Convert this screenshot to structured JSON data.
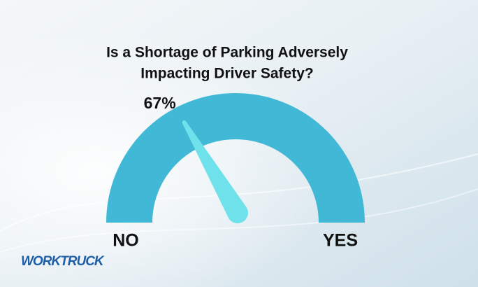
{
  "chart_data": {
    "type": "gauge",
    "title_lines": [
      "Is a Shortage of Parking Adversely",
      "Impacting Driver Safety?"
    ],
    "value": 67,
    "value_label": "67%",
    "ylim": [
      0,
      100
    ],
    "left_label": "NO",
    "right_label": "YES",
    "color": "#41b8d6",
    "needle_color": "#6fe1ea"
  },
  "logo": "WORKTRUCK"
}
